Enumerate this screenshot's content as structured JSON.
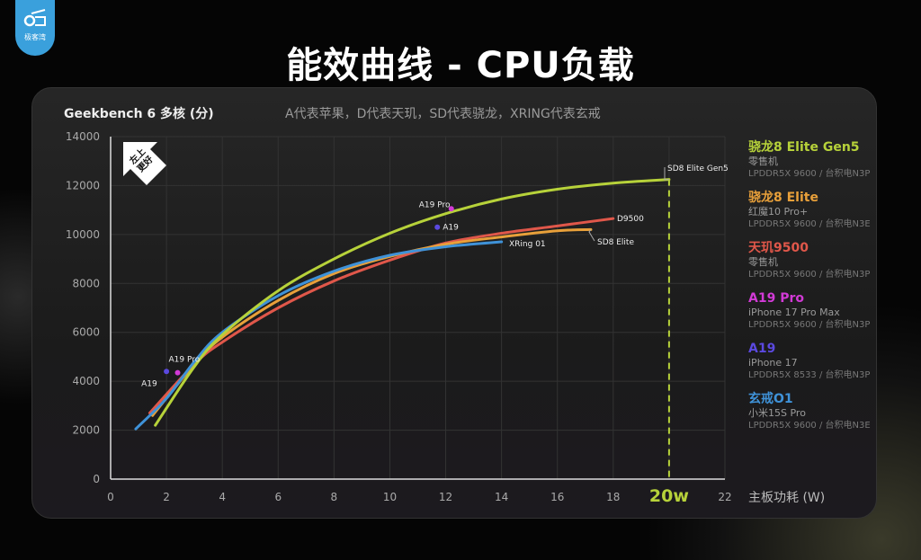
{
  "logo": {
    "text": "极客湾"
  },
  "title": "能效曲线 - CPU负载",
  "note": "A代表苹果，D代表天玑，SD代表骁龙，XRING代表玄戒",
  "badge": "左上更好",
  "chart_data": {
    "type": "line",
    "title": "能效曲线 - CPU负载",
    "ylabel": "Geekbench 6 多核 (分)",
    "xlabel": "主板功耗 (W)",
    "xlim": [
      0,
      22
    ],
    "ylim": [
      0,
      14000
    ],
    "xticks": [
      "0",
      "2",
      "4",
      "6",
      "8",
      "10",
      "12",
      "14",
      "16",
      "18",
      "20w",
      "22"
    ],
    "xtick_values": [
      0,
      2,
      4,
      6,
      8,
      10,
      12,
      14,
      16,
      18,
      20,
      22
    ],
    "yticks": [
      "0",
      "2000",
      "4000",
      "6000",
      "8000",
      "10000",
      "12000",
      "14000"
    ],
    "ytick_values": [
      0,
      2000,
      4000,
      6000,
      8000,
      10000,
      12000,
      14000
    ],
    "grid": true,
    "reference_line": {
      "x": 20,
      "color": "#b7d23a",
      "style": "dashed"
    },
    "series": [
      {
        "name": "SD8 Elite Gen5",
        "color": "#b7d23a",
        "label": "SD8 Elite Gen5",
        "points": [
          [
            1.6,
            2200
          ],
          [
            3,
            4600
          ],
          [
            4,
            5900
          ],
          [
            6,
            7700
          ],
          [
            8,
            9000
          ],
          [
            10,
            10050
          ],
          [
            12,
            10850
          ],
          [
            14,
            11450
          ],
          [
            16,
            11850
          ],
          [
            18,
            12100
          ],
          [
            20,
            12250
          ]
        ]
      },
      {
        "name": "D9500",
        "color": "#e0574a",
        "label": "D9500",
        "points": [
          [
            1.4,
            2700
          ],
          [
            3,
            4700
          ],
          [
            4,
            5600
          ],
          [
            6,
            7000
          ],
          [
            8,
            8100
          ],
          [
            10,
            8950
          ],
          [
            12,
            9650
          ],
          [
            14,
            10050
          ],
          [
            16,
            10350
          ],
          [
            18,
            10650
          ]
        ]
      },
      {
        "name": "SD8 Elite",
        "color": "#e8a03a",
        "label": "SD8 Elite",
        "points": [
          [
            1.5,
            2600
          ],
          [
            3,
            4700
          ],
          [
            4,
            5800
          ],
          [
            6,
            7300
          ],
          [
            8,
            8400
          ],
          [
            10,
            9100
          ],
          [
            12,
            9600
          ],
          [
            14,
            9900
          ],
          [
            16,
            10150
          ],
          [
            17.2,
            10200
          ]
        ]
      },
      {
        "name": "XRing 01",
        "color": "#3f92d8",
        "label": "XRing 01",
        "points": [
          [
            0.9,
            2050
          ],
          [
            2,
            3300
          ],
          [
            3,
            4800
          ],
          [
            4,
            6000
          ],
          [
            6,
            7500
          ],
          [
            8,
            8500
          ],
          [
            10,
            9150
          ],
          [
            12,
            9500
          ],
          [
            14,
            9700
          ]
        ]
      }
    ],
    "points": [
      {
        "name": "A19",
        "color": "#5b49e0",
        "x": 2.0,
        "y": 4400,
        "label": "A19"
      },
      {
        "name": "A19 Pro",
        "color": "#d23ad6",
        "x": 2.4,
        "y": 4350,
        "label": "A19 Pro"
      },
      {
        "name": "A19",
        "color": "#5b49e0",
        "x": 11.7,
        "y": 10300,
        "label": "A19"
      },
      {
        "name": "A19 Pro",
        "color": "#d23ad6",
        "x": 12.2,
        "y": 11050,
        "label": "A19 Pro"
      }
    ]
  },
  "legend": [
    {
      "name": "骁龙8 Elite Gen5",
      "device": "零售机",
      "memory": "LPDDR5X 9600 / 台积电N3P",
      "color": "#b7d23a"
    },
    {
      "name": "骁龙8 Elite",
      "device": "红魔10 Pro+",
      "memory": "LPDDR5X 9600 / 台积电N3E",
      "color": "#e8a03a"
    },
    {
      "name": "天玑9500",
      "device": "零售机",
      "memory": "LPDDR5X 9600 / 台积电N3P",
      "color": "#e0574a"
    },
    {
      "name": "A19 Pro",
      "device": "iPhone 17 Pro Max",
      "memory": "LPDDR5X 9600 / 台积电N3P",
      "color": "#d23ad6"
    },
    {
      "name": "A19",
      "device": "iPhone 17",
      "memory": "LPDDR5X 8533 / 台积电N3P",
      "color": "#5b49e0"
    },
    {
      "name": "玄戒O1",
      "device": "小米15S Pro",
      "memory": "LPDDR5X 9600 / 台积电N3E",
      "color": "#3f92d8"
    }
  ]
}
